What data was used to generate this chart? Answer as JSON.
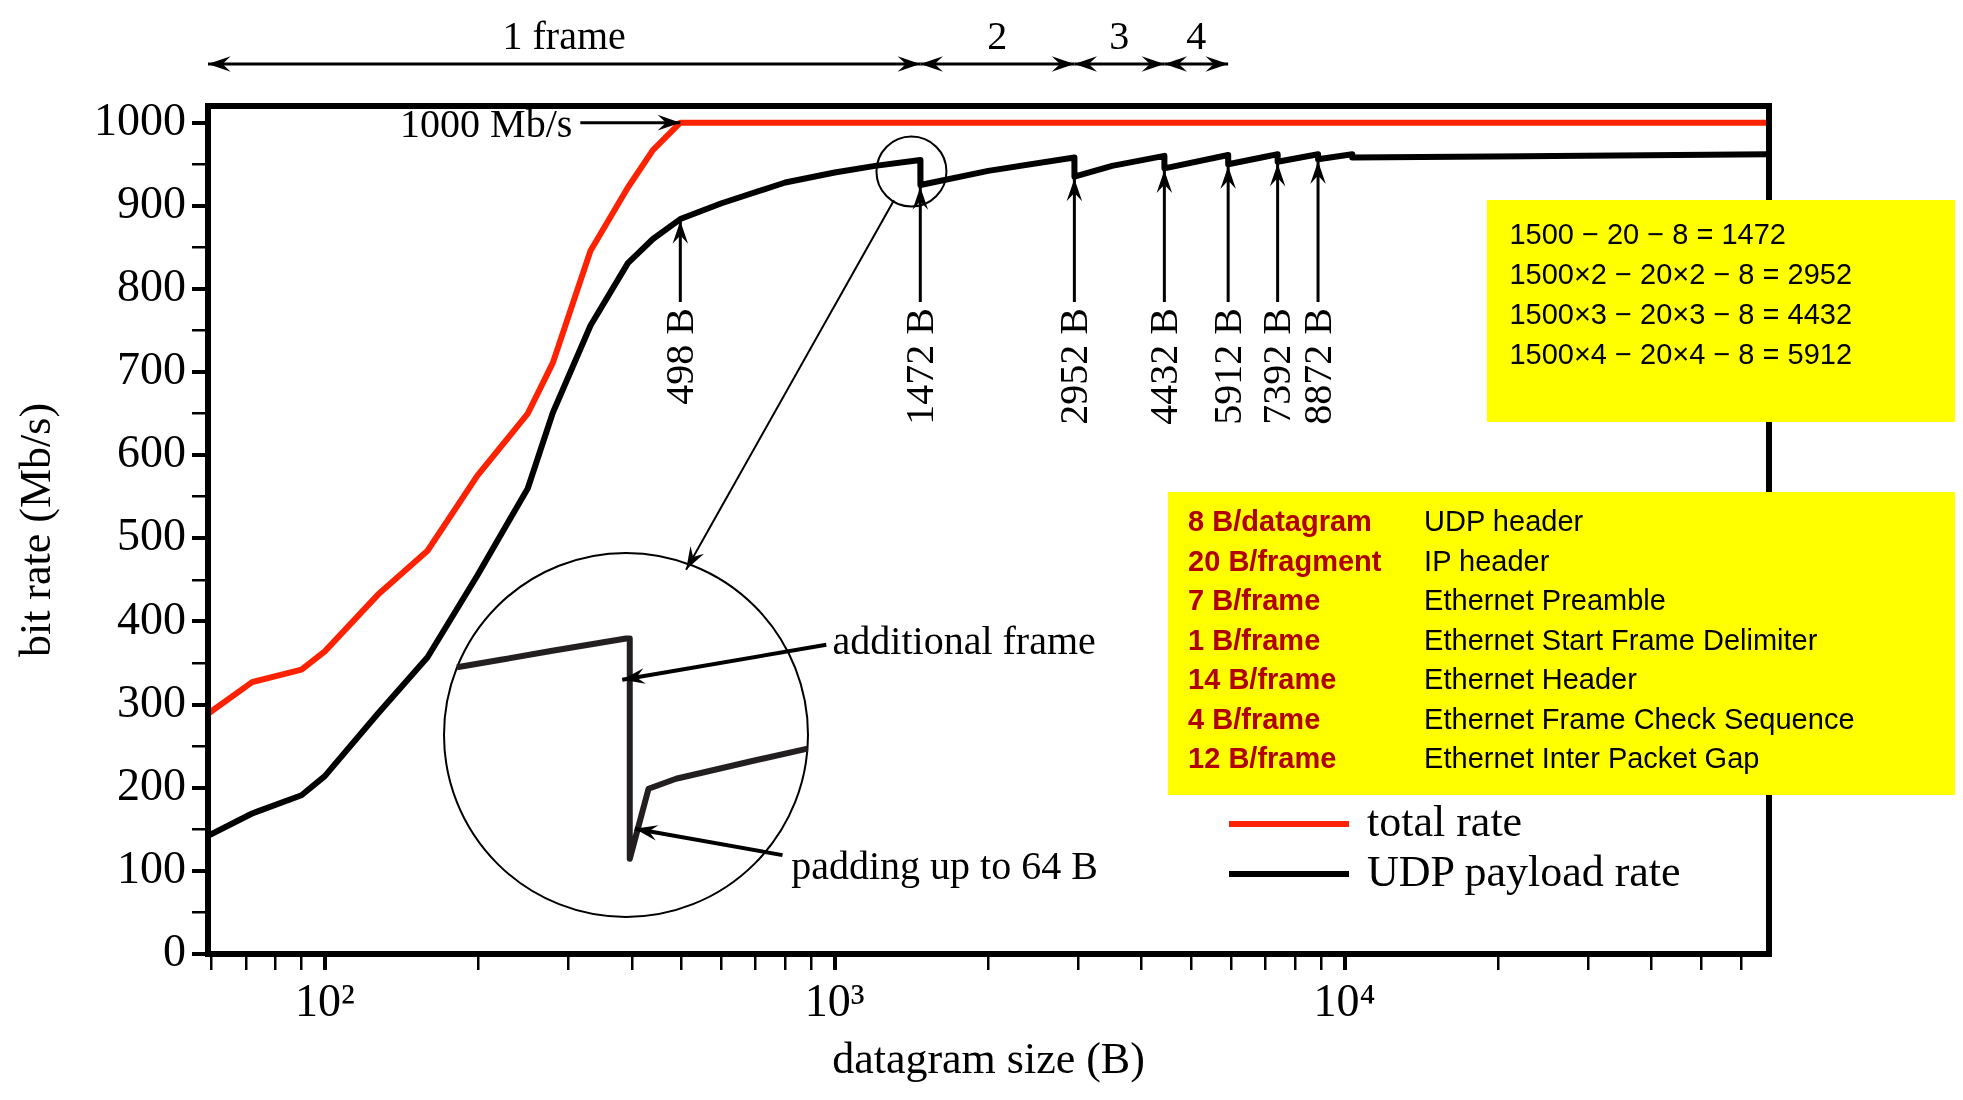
{
  "chart_data": {
    "type": "line",
    "xlabel": "datagram size (B)",
    "ylabel": "bit rate (Mb/s)",
    "log": "x",
    "xlim": [
      59,
      68000
    ],
    "ylim": [
      0,
      1020
    ],
    "xticks": [
      {
        "value": 60,
        "label": null
      },
      {
        "value": 70,
        "label": null
      },
      {
        "value": 80,
        "label": null
      },
      {
        "value": 90,
        "label": null
      },
      {
        "value": 100,
        "label": "10²"
      },
      {
        "value": 200,
        "label": null
      },
      {
        "value": 300,
        "label": null
      },
      {
        "value": 400,
        "label": null
      },
      {
        "value": 500,
        "label": null
      },
      {
        "value": 600,
        "label": null
      },
      {
        "value": 700,
        "label": null
      },
      {
        "value": 800,
        "label": null
      },
      {
        "value": 900,
        "label": null
      },
      {
        "value": 1000,
        "label": "10³"
      },
      {
        "value": 2000,
        "label": null
      },
      {
        "value": 3000,
        "label": null
      },
      {
        "value": 4000,
        "label": null
      },
      {
        "value": 5000,
        "label": null
      },
      {
        "value": 6000,
        "label": null
      },
      {
        "value": 7000,
        "label": null
      },
      {
        "value": 8000,
        "label": null
      },
      {
        "value": 9000,
        "label": null
      },
      {
        "value": 10000,
        "label": "10⁴"
      },
      {
        "value": 20000,
        "label": null
      },
      {
        "value": 30000,
        "label": null
      },
      {
        "value": 40000,
        "label": null
      },
      {
        "value": 50000,
        "label": null
      },
      {
        "value": 60000,
        "label": null
      }
    ],
    "yticks": [
      0,
      {
        "value": 50,
        "label": null
      },
      100,
      {
        "value": 150,
        "label": null
      },
      200,
      {
        "value": 250,
        "label": null
      },
      300,
      {
        "value": 350,
        "label": null
      },
      400,
      {
        "value": 450,
        "label": null
      },
      500,
      {
        "value": 550,
        "label": null
      },
      600,
      {
        "value": 650,
        "label": null
      },
      700,
      {
        "value": 750,
        "label": null
      },
      800,
      {
        "value": 850,
        "label": null
      },
      900,
      {
        "value": 950,
        "label": null
      },
      1000
    ],
    "series": [
      {
        "name": "total rate",
        "color": "#ff2200",
        "x": [
          59,
          72,
          90,
          100,
          127,
          159,
          199,
          250,
          280,
          332,
          393,
          440,
          498,
          68000
        ],
        "values": [
          289,
          327,
          342,
          364,
          432,
          485,
          575,
          650,
          711,
          846,
          922,
          967,
          1000,
          1000
        ]
      },
      {
        "name": "UDP payload rate",
        "color": "#000000",
        "x": [
          59,
          72,
          90,
          100,
          127,
          159,
          199,
          250,
          280,
          332,
          393,
          440,
          498,
          600,
          800,
          1000,
          1200,
          1472,
          1473,
          2000,
          2952,
          2953,
          3500,
          4432,
          4433,
          5912,
          5913,
          7392,
          7393,
          8872,
          8873,
          10352,
          10353,
          68000
        ],
        "values": [
          142,
          169,
          191,
          214,
          289,
          357,
          455,
          560,
          651,
          756,
          831,
          860,
          884,
          903,
          928,
          940,
          948,
          955,
          925,
          942,
          958,
          935,
          948,
          960,
          945,
          961,
          950,
          962,
          953,
          962,
          956,
          962,
          958,
          962
        ]
      }
    ],
    "legend": "bottom right",
    "annotations": [
      "1 frame",
      "2",
      "3",
      "4",
      {
        "text": "1000 Mb/s",
        "x": 498,
        "y": 1000
      },
      {
        "text": "498 B",
        "x": 498,
        "y": 884
      },
      {
        "text": "1472 B",
        "x": 1472,
        "y": 925
      },
      {
        "text": "2952 B",
        "x": 2952,
        "y": 935
      },
      {
        "text": "4432 B",
        "x": 4432,
        "y": 945
      },
      {
        "text": "5912 B",
        "x": 5912,
        "y": 950
      },
      {
        "text": "7392 B",
        "x": 7392,
        "y": 953
      },
      {
        "text": "8872 B",
        "x": 8872,
        "y": 956
      },
      "additional frame",
      "padding up to 64 B",
      "1500 − 20 − 8 = 1472\n1500×2 − 20×2 − 8 = 2952\n1500×3 − 20×3 − 8 = 4432\n1500×4 − 20×4 − 8 = 5912",
      "8 B/datagram\tUDP header\n20 B/fragment\tIP header\n7 B/frame\tEthernet Preamble\n1 B/frame\tEthernet Start Frame Delimiter\n14 B/frame\tEthernet Header\n4 B/frame\tEthernet Frame Check Sequence\n12 B/frame\tEthernet Inter Packet Gap"
    ]
  }
}
